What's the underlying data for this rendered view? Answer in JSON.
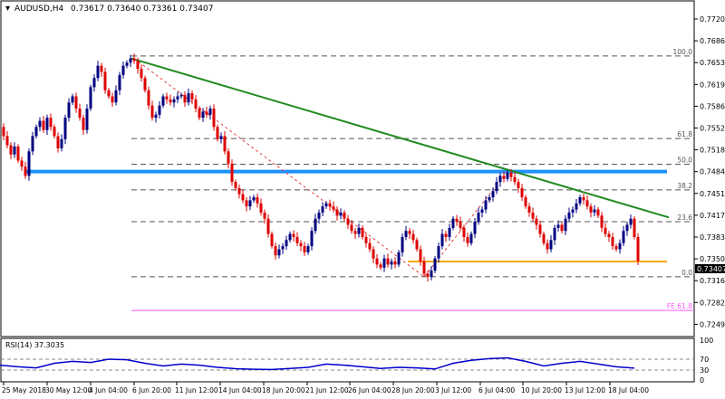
{
  "header": {
    "symbol": "AUDUSD,H4",
    "ohlc": "0.73617 0.73640 0.73361 0.73407"
  },
  "price_axis": {
    "ticks": [
      "0.77200",
      "0.76860",
      "0.76530",
      "0.76190",
      "0.75860",
      "0.75520",
      "0.75180",
      "0.74840",
      "0.74510",
      "0.74170",
      "0.73830",
      "0.73500",
      "0.73160",
      "0.72820",
      "0.72490"
    ],
    "current_price": "0.73407"
  },
  "time_axis": {
    "ticks": [
      "25 May 2018",
      "30 May 12:00",
      "4 Jun 04:00",
      "6 Jun 20:00",
      "11 Jun 12:00",
      "14 Jun 04:00",
      "18 Jun 20:00",
      "21 Jun 12:00",
      "26 Jun 04:00",
      "28 Jun 20:00",
      "3 Jul 12:00",
      "6 Jul 04:00",
      "10 Jul 20:00",
      "13 Jul 12:00",
      "18 Jul 04:00"
    ]
  },
  "fib_labels": [
    "100.0",
    "61.8",
    "50.0",
    "38.2",
    "23.6",
    "0.0",
    "FE 61.8"
  ],
  "rsi": {
    "label": "RSI(14) 37.3035",
    "ticks": [
      "100",
      "70",
      "30",
      "0"
    ]
  },
  "colors": {
    "candle_up": "#000080",
    "candle_down": "#dd0000",
    "trendline": "#228b22",
    "resistance": "#1e90ff",
    "support": "#ffa500",
    "fib": "#555555",
    "fe_line": "#ff55ff",
    "rsi_line": "#0000cd"
  },
  "chart_data": {
    "type": "candlestick",
    "symbol": "AUDUSD",
    "timeframe": "H4",
    "ylim": [
      0.7232,
      0.7735
    ],
    "close_series": [
      [
        0,
        0.756
      ],
      [
        4,
        0.7545
      ],
      [
        8,
        0.753
      ],
      [
        12,
        0.7515
      ],
      [
        16,
        0.7528
      ],
      [
        20,
        0.7505
      ],
      [
        24,
        0.7495
      ],
      [
        28,
        0.748
      ],
      [
        32,
        0.752
      ],
      [
        36,
        0.7545
      ],
      [
        40,
        0.756
      ],
      [
        44,
        0.757
      ],
      [
        48,
        0.7555
      ],
      [
        52,
        0.7575
      ],
      [
        56,
        0.756
      ],
      [
        60,
        0.7545
      ],
      [
        64,
        0.7525
      ],
      [
        68,
        0.754
      ],
      [
        72,
        0.7575
      ],
      [
        76,
        0.76
      ],
      [
        80,
        0.761
      ],
      [
        84,
        0.759
      ],
      [
        88,
        0.7575
      ],
      [
        92,
        0.7555
      ],
      [
        96,
        0.759
      ],
      [
        100,
        0.7625
      ],
      [
        104,
        0.764
      ],
      [
        108,
        0.766
      ],
      [
        112,
        0.765
      ],
      [
        116,
        0.762
      ],
      [
        120,
        0.761
      ],
      [
        124,
        0.76
      ],
      [
        128,
        0.762
      ],
      [
        132,
        0.7645
      ],
      [
        136,
        0.766
      ],
      [
        140,
        0.7665
      ],
      [
        144,
        0.7672
      ],
      [
        148,
        0.7668
      ],
      [
        152,
        0.7655
      ],
      [
        156,
        0.764
      ],
      [
        160,
        0.762
      ],
      [
        164,
        0.7595
      ],
      [
        168,
        0.7575
      ],
      [
        172,
        0.758
      ],
      [
        176,
        0.7595
      ],
      [
        180,
        0.761
      ],
      [
        184,
        0.7605
      ],
      [
        188,
        0.76
      ],
      [
        192,
        0.7605
      ],
      [
        196,
        0.761
      ],
      [
        200,
        0.7612
      ],
      [
        204,
        0.76
      ],
      [
        208,
        0.7615
      ],
      [
        212,
        0.7605
      ],
      [
        216,
        0.759
      ],
      [
        220,
        0.7575
      ],
      [
        224,
        0.7585
      ],
      [
        228,
        0.758
      ],
      [
        232,
        0.759
      ],
      [
        236,
        0.756
      ],
      [
        240,
        0.754
      ],
      [
        244,
        0.7545
      ],
      [
        248,
        0.752
      ],
      [
        252,
        0.75
      ],
      [
        256,
        0.747
      ],
      [
        260,
        0.746
      ],
      [
        264,
        0.745
      ],
      [
        268,
        0.744
      ],
      [
        272,
        0.743
      ],
      [
        276,
        0.744
      ],
      [
        280,
        0.7445
      ],
      [
        284,
        0.7435
      ],
      [
        288,
        0.742
      ],
      [
        292,
        0.741
      ],
      [
        296,
        0.7385
      ],
      [
        300,
        0.7365
      ],
      [
        304,
        0.735
      ],
      [
        308,
        0.736
      ],
      [
        312,
        0.7365
      ],
      [
        316,
        0.7375
      ],
      [
        320,
        0.7385
      ],
      [
        324,
        0.738
      ],
      [
        328,
        0.737
      ],
      [
        332,
        0.7365
      ],
      [
        336,
        0.7355
      ],
      [
        340,
        0.7365
      ],
      [
        344,
        0.739
      ],
      [
        348,
        0.741
      ],
      [
        352,
        0.742
      ],
      [
        356,
        0.743
      ],
      [
        360,
        0.7435
      ],
      [
        364,
        0.743
      ],
      [
        368,
        0.7425
      ],
      [
        372,
        0.7415
      ],
      [
        376,
        0.742
      ],
      [
        380,
        0.741
      ],
      [
        384,
        0.74
      ],
      [
        388,
        0.739
      ],
      [
        392,
        0.7385
      ],
      [
        396,
        0.7395
      ],
      [
        400,
        0.738
      ],
      [
        404,
        0.737
      ],
      [
        408,
        0.736
      ],
      [
        412,
        0.7345
      ],
      [
        416,
        0.7335
      ],
      [
        420,
        0.733
      ],
      [
        424,
        0.7345
      ],
      [
        428,
        0.7335
      ],
      [
        432,
        0.734
      ],
      [
        436,
        0.7335
      ],
      [
        440,
        0.7355
      ],
      [
        444,
        0.738
      ],
      [
        448,
        0.739
      ],
      [
        452,
        0.7385
      ],
      [
        456,
        0.7375
      ],
      [
        460,
        0.736
      ],
      [
        464,
        0.734
      ],
      [
        468,
        0.732
      ],
      [
        472,
        0.7315
      ],
      [
        476,
        0.7325
      ],
      [
        480,
        0.7345
      ],
      [
        484,
        0.7365
      ],
      [
        488,
        0.7385
      ],
      [
        492,
        0.738
      ],
      [
        496,
        0.7395
      ],
      [
        500,
        0.741
      ],
      [
        504,
        0.7405
      ],
      [
        508,
        0.7395
      ],
      [
        512,
        0.738
      ],
      [
        516,
        0.737
      ],
      [
        520,
        0.7385
      ],
      [
        524,
        0.7405
      ],
      [
        528,
        0.742
      ],
      [
        532,
        0.7425
      ],
      [
        536,
        0.744
      ],
      [
        540,
        0.7445
      ],
      [
        544,
        0.7455
      ],
      [
        548,
        0.747
      ],
      [
        552,
        0.748
      ],
      [
        556,
        0.7475
      ],
      [
        560,
        0.7485
      ],
      [
        564,
        0.7478
      ],
      [
        568,
        0.747
      ],
      [
        572,
        0.746
      ],
      [
        576,
        0.7445
      ],
      [
        580,
        0.743
      ],
      [
        584,
        0.742
      ],
      [
        588,
        0.741
      ],
      [
        592,
        0.74
      ],
      [
        596,
        0.7385
      ],
      [
        600,
        0.737
      ],
      [
        604,
        0.736
      ],
      [
        608,
        0.7375
      ],
      [
        612,
        0.7395
      ],
      [
        616,
        0.74
      ],
      [
        620,
        0.739
      ],
      [
        624,
        0.741
      ],
      [
        628,
        0.742
      ],
      [
        632,
        0.7425
      ],
      [
        636,
        0.7435
      ],
      [
        640,
        0.7445
      ],
      [
        644,
        0.744
      ],
      [
        648,
        0.743
      ],
      [
        652,
        0.742
      ],
      [
        656,
        0.7425
      ],
      [
        660,
        0.7415
      ],
      [
        664,
        0.7395
      ],
      [
        668,
        0.7385
      ],
      [
        672,
        0.738
      ],
      [
        676,
        0.7365
      ],
      [
        680,
        0.736
      ],
      [
        684,
        0.737
      ],
      [
        688,
        0.739
      ],
      [
        692,
        0.74
      ],
      [
        696,
        0.741
      ],
      [
        700,
        0.738
      ],
      [
        704,
        0.7341
      ]
    ],
    "lines": {
      "trendline": {
        "from": [
          145,
          0.7672
        ],
        "to": [
          738,
          0.7412
        ]
      },
      "resistance_level": 0.7487,
      "support_level": 0.734,
      "diagonal_dashed": [
        [
          148,
          0.7672
        ],
        [
          468,
          0.7315
        ],
        [
          560,
          0.7487
        ]
      ]
    },
    "fibonacci": [
      {
        "label": "100.0",
        "value": 0.7676
      },
      {
        "label": "61.8",
        "value": 0.7541
      },
      {
        "label": "50.0",
        "value": 0.7499
      },
      {
        "label": "38.2",
        "value": 0.7457
      },
      {
        "label": "23.6",
        "value": 0.7405
      },
      {
        "label": "0.0",
        "value": 0.7315
      },
      {
        "label": "FE 61.8",
        "value": 0.726
      }
    ],
    "rsi_series": [
      [
        0,
        48
      ],
      [
        20,
        42
      ],
      [
        40,
        38
      ],
      [
        60,
        55
      ],
      [
        80,
        62
      ],
      [
        100,
        58
      ],
      [
        120,
        70
      ],
      [
        140,
        68
      ],
      [
        160,
        55
      ],
      [
        180,
        45
      ],
      [
        200,
        52
      ],
      [
        220,
        48
      ],
      [
        240,
        40
      ],
      [
        260,
        35
      ],
      [
        280,
        33
      ],
      [
        300,
        32
      ],
      [
        320,
        36
      ],
      [
        340,
        40
      ],
      [
        360,
        52
      ],
      [
        380,
        48
      ],
      [
        400,
        42
      ],
      [
        420,
        36
      ],
      [
        440,
        40
      ],
      [
        460,
        38
      ],
      [
        480,
        34
      ],
      [
        500,
        55
      ],
      [
        520,
        66
      ],
      [
        540,
        72
      ],
      [
        560,
        75
      ],
      [
        580,
        62
      ],
      [
        600,
        45
      ],
      [
        620,
        55
      ],
      [
        640,
        62
      ],
      [
        660,
        52
      ],
      [
        680,
        42
      ],
      [
        700,
        37
      ]
    ],
    "rsi_ylim": [
      0,
      100
    ]
  }
}
